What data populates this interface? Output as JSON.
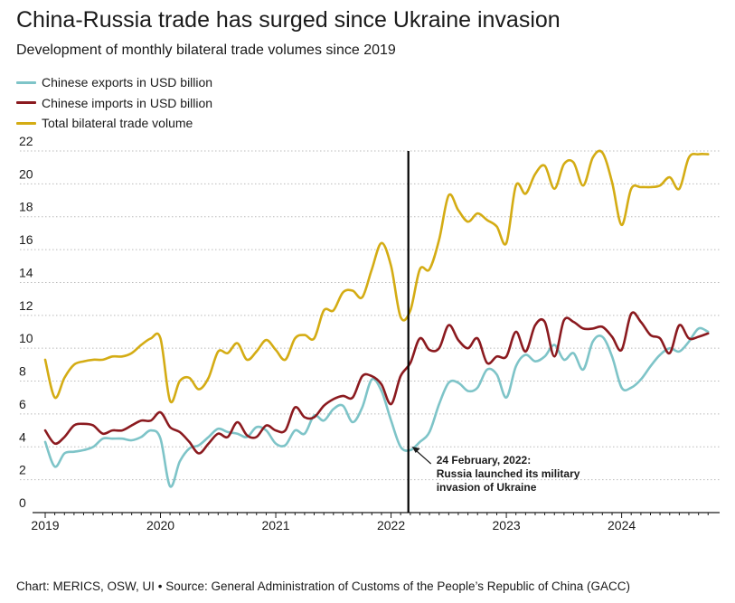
{
  "header": {
    "title": "China-Russia trade has surged since Ukraine invasion",
    "subtitle": "Development of monthly bilateral trade volumes since 2019"
  },
  "footer": {
    "credit": "Chart: MERICS, OSW, UI",
    "separator": " • ",
    "source": "Source: General Administration of Customs of the People’s Republic of China (GACC)"
  },
  "colors": {
    "exports": "#7ec4c8",
    "imports": "#8b1a1f",
    "total": "#d4ac14",
    "gridline": "#bbbbbb",
    "marker": "#000000"
  },
  "chart_data": {
    "type": "line",
    "title": "China-Russia trade has surged since Ukraine invasion",
    "subtitle": "Development of monthly bilateral trade volumes since 2019",
    "xlabel": "",
    "ylabel": "",
    "xlim": [
      2019.0,
      2024.85
    ],
    "ylim": [
      0,
      22
    ],
    "yticks": [
      0,
      2,
      4,
      6,
      8,
      10,
      12,
      14,
      16,
      18,
      20,
      22
    ],
    "xticks": [
      2019,
      2020,
      2021,
      2022,
      2023,
      2024
    ],
    "grid": true,
    "legend_position": "top-left",
    "x": [
      2019.0,
      2019.083,
      2019.167,
      2019.25,
      2019.333,
      2019.417,
      2019.5,
      2019.583,
      2019.667,
      2019.75,
      2019.833,
      2019.917,
      2020.0,
      2020.083,
      2020.167,
      2020.25,
      2020.333,
      2020.417,
      2020.5,
      2020.583,
      2020.667,
      2020.75,
      2020.833,
      2020.917,
      2021.0,
      2021.083,
      2021.167,
      2021.25,
      2021.333,
      2021.417,
      2021.5,
      2021.583,
      2021.667,
      2021.75,
      2021.833,
      2021.917,
      2022.0,
      2022.083,
      2022.167,
      2022.25,
      2022.333,
      2022.417,
      2022.5,
      2022.583,
      2022.667,
      2022.75,
      2022.833,
      2022.917,
      2023.0,
      2023.083,
      2023.167,
      2023.25,
      2023.333,
      2023.417,
      2023.5,
      2023.583,
      2023.667,
      2023.75,
      2023.833,
      2023.917,
      2024.0,
      2024.083,
      2024.167,
      2024.25,
      2024.333,
      2024.417,
      2024.5,
      2024.583,
      2024.667,
      2024.75
    ],
    "series": [
      {
        "name": "Chinese exports in USD billion",
        "color": "#7ec4c8",
        "values": [
          4.3,
          2.8,
          3.6,
          3.7,
          3.8,
          4.0,
          4.5,
          4.5,
          4.5,
          4.4,
          4.6,
          5.0,
          4.5,
          1.6,
          3.1,
          3.9,
          4.1,
          4.6,
          5.1,
          4.9,
          4.8,
          4.6,
          5.2,
          5.0,
          4.2,
          4.1,
          5.0,
          4.8,
          5.9,
          5.6,
          6.3,
          6.5,
          5.5,
          6.4,
          8.1,
          7.4,
          5.6,
          4.0,
          3.8,
          4.3,
          4.9,
          6.6,
          7.9,
          7.9,
          7.4,
          7.6,
          8.7,
          8.4,
          7.0,
          8.9,
          9.6,
          9.2,
          9.5,
          10.2,
          9.3,
          9.7,
          8.7,
          10.4,
          10.7,
          9.5,
          7.6,
          7.6,
          8.1,
          8.9,
          9.6,
          10.0,
          9.8,
          10.4,
          11.2,
          11.0
        ]
      },
      {
        "name": "Chinese imports in USD billion",
        "color": "#8b1a1f",
        "values": [
          5.0,
          4.2,
          4.6,
          5.3,
          5.4,
          5.3,
          4.8,
          5.0,
          5.0,
          5.3,
          5.6,
          5.6,
          6.1,
          5.2,
          4.9,
          4.3,
          3.6,
          4.2,
          4.8,
          4.6,
          5.5,
          4.7,
          4.6,
          5.3,
          5.0,
          5.0,
          6.4,
          5.8,
          5.8,
          6.5,
          6.9,
          7.1,
          7.0,
          8.3,
          8.3,
          7.8,
          6.6,
          8.3,
          9.1,
          10.6,
          9.9,
          10.0,
          11.4,
          10.5,
          10.0,
          10.6,
          9.1,
          9.5,
          9.5,
          11.0,
          9.8,
          11.4,
          11.6,
          9.5,
          11.7,
          11.6,
          11.2,
          11.2,
          11.3,
          10.7,
          9.9,
          12.1,
          11.6,
          10.8,
          10.6,
          9.7,
          11.4,
          10.6,
          10.7,
          10.9
        ]
      },
      {
        "name": "Total bilateral trade volume",
        "color": "#d4ac14",
        "values": [
          9.3,
          7.0,
          8.2,
          9.0,
          9.2,
          9.3,
          9.3,
          9.5,
          9.5,
          9.7,
          10.2,
          10.6,
          10.6,
          6.8,
          8.0,
          8.2,
          7.5,
          8.2,
          9.8,
          9.7,
          10.3,
          9.3,
          9.8,
          10.5,
          9.9,
          9.3,
          10.6,
          10.8,
          10.6,
          12.3,
          12.3,
          13.4,
          13.5,
          13.1,
          14.8,
          16.4,
          15.0,
          11.9,
          12.3,
          14.8,
          14.8,
          16.6,
          19.3,
          18.4,
          17.7,
          18.2,
          17.8,
          17.4,
          16.4,
          19.9,
          19.4,
          20.6,
          21.1,
          19.7,
          21.2,
          21.3,
          19.9,
          21.6,
          21.9,
          20.1,
          17.5,
          19.7,
          19.8,
          19.8,
          19.9,
          20.4,
          19.7,
          21.6,
          21.8,
          21.8
        ]
      }
    ],
    "annotations": [
      {
        "x": 2022.15,
        "text_lines": [
          "24 February, 2022:",
          "Russia launched its military",
          "invasion of Ukraine"
        ]
      }
    ]
  }
}
